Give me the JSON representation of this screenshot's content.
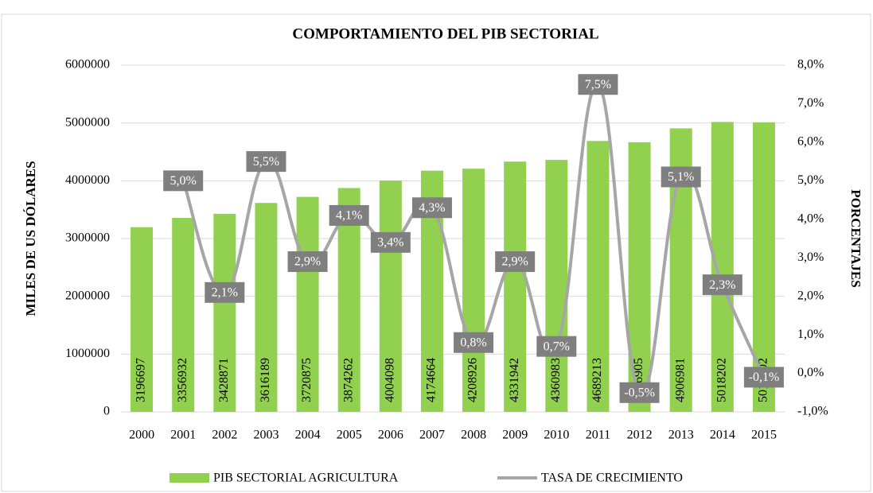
{
  "chart_data": {
    "type": "bar_line",
    "title": "COMPORTAMIENTO DEL PIB SECTORIAL",
    "y_label": "MILES DE US DÓLARES",
    "y2_label": "PORCENTAJES",
    "categories": [
      "2000",
      "2001",
      "2002",
      "2003",
      "2004",
      "2005",
      "2006",
      "2007",
      "2008",
      "2009",
      "2010",
      "2011",
      "2012",
      "2013",
      "2014",
      "2015"
    ],
    "series": [
      {
        "name": "PIB SECTORIAL AGRICULTURA",
        "type": "bar",
        "color": "#92d050",
        "values": [
          3196697,
          3356932,
          3428871,
          3616189,
          3720875,
          3874262,
          4004098,
          4174664,
          4208926,
          4331942,
          4360983,
          4689213,
          4666905,
          4906981,
          5018202,
          5012202
        ]
      },
      {
        "name": "TASA DE CRECIMIENTO",
        "type": "line",
        "axis": "y2",
        "color": "#a6a6a6",
        "values": [
          null,
          5.0,
          2.1,
          5.5,
          2.9,
          4.1,
          3.4,
          4.3,
          0.8,
          2.9,
          0.7,
          7.5,
          -0.5,
          5.1,
          2.3,
          -0.1
        ],
        "value_labels": [
          null,
          "5,0%",
          "2,1%",
          "5,5%",
          "2,9%",
          "4,1%",
          "3,4%",
          "4,3%",
          "0,8%",
          "2,9%",
          "0,7%",
          "7,5%",
          "-0,5%",
          "5,1%",
          "2,3%",
          "-0,1%"
        ]
      }
    ],
    "ylim": [
      0,
      6000000
    ],
    "yticks": [
      0,
      1000000,
      2000000,
      3000000,
      4000000,
      5000000,
      6000000
    ],
    "y2lim": [
      -1,
      8
    ],
    "y2ticks": [
      {
        "value": -1,
        "label": "-1,0%"
      },
      {
        "value": 0,
        "label": "0,0%"
      },
      {
        "value": 1,
        "label": "1,0%"
      },
      {
        "value": 2,
        "label": "2,0%"
      },
      {
        "value": 3,
        "label": "3,0%"
      },
      {
        "value": 4,
        "label": "4,0%"
      },
      {
        "value": 5,
        "label": "5,0%"
      },
      {
        "value": 6,
        "label": "6,0%"
      },
      {
        "value": 7,
        "label": "7,0%"
      },
      {
        "value": 8,
        "label": "8,0%"
      }
    ],
    "grid": true,
    "legend": "bottom"
  }
}
